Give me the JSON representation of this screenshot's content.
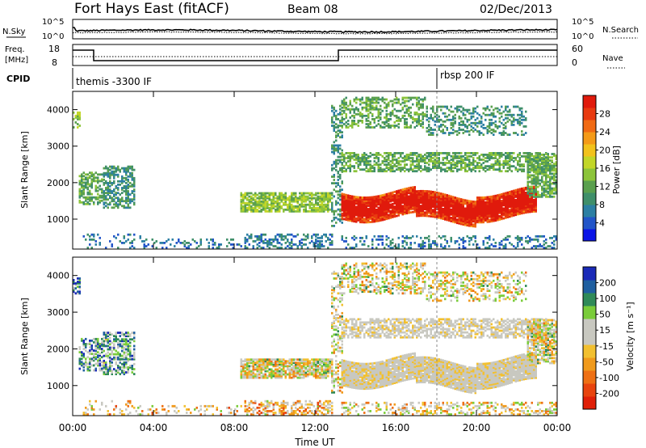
{
  "header": {
    "station": "Fort Hays East (fitACF)",
    "beam": "Beam 08",
    "date": "02/Dec/2013"
  },
  "noise_panel": {
    "left_label": "N.Sky",
    "right_label": "N.Search",
    "left_ticks": [
      "10^5",
      "10^0"
    ],
    "right_ticks": [
      "10^5",
      "10^0"
    ]
  },
  "freq_panel": {
    "left_label_1": "Freq.",
    "left_label_2": "[MHz]",
    "left_ticks": [
      "18",
      "8"
    ],
    "right_label": "Nave",
    "right_ticks": [
      "60",
      "0"
    ]
  },
  "cpid_panel": {
    "label": "CPID",
    "programs": [
      "themis -3300 IF",
      "rbsp 200 IF"
    ]
  },
  "chart_data": [
    {
      "type": "heatmap",
      "name": "power-panel",
      "ylabel": "Slant Range [km]",
      "ylim": [
        180,
        4500
      ],
      "yticks": [
        1000,
        2000,
        3000,
        4000
      ],
      "xlim_hours": [
        0,
        24
      ],
      "colorbar": {
        "label": "Power [dB]",
        "ticks": [
          "4",
          "8",
          "12",
          "16",
          "20",
          "24",
          "28"
        ],
        "colors": [
          "#0a14e6",
          "#2255c8",
          "#2c7fa3",
          "#3f8f6a",
          "#5aa04e",
          "#8cc43a",
          "#c2d628",
          "#f2c21c",
          "#f49a18",
          "#f06a14",
          "#e83a10",
          "#e01a0c"
        ]
      }
    },
    {
      "type": "heatmap",
      "name": "velocity-panel",
      "ylabel": "Slant Range [km]",
      "ylim": [
        180,
        4500
      ],
      "yticks": [
        1000,
        2000,
        3000,
        4000
      ],
      "xlim_hours": [
        0,
        24
      ],
      "colorbar": {
        "label": "Velocity [m s⁻¹]",
        "ticks": [
          "200",
          "100",
          "50",
          "15",
          "-15",
          "-50",
          "-100",
          "-200"
        ],
        "colors": [
          "#1a2ab8",
          "#1f5fa0",
          "#2f8a58",
          "#7acc3a",
          "#c8c8c0",
          "#c8c8c0",
          "#f2c030",
          "#f09a1c",
          "#ee7014",
          "#e8440e",
          "#e02008"
        ]
      }
    }
  ],
  "x_axis": {
    "label": "Time UT",
    "ticks": [
      "00:00",
      "04:00",
      "08:00",
      "12:00",
      "16:00",
      "20:00",
      "00:00"
    ]
  }
}
